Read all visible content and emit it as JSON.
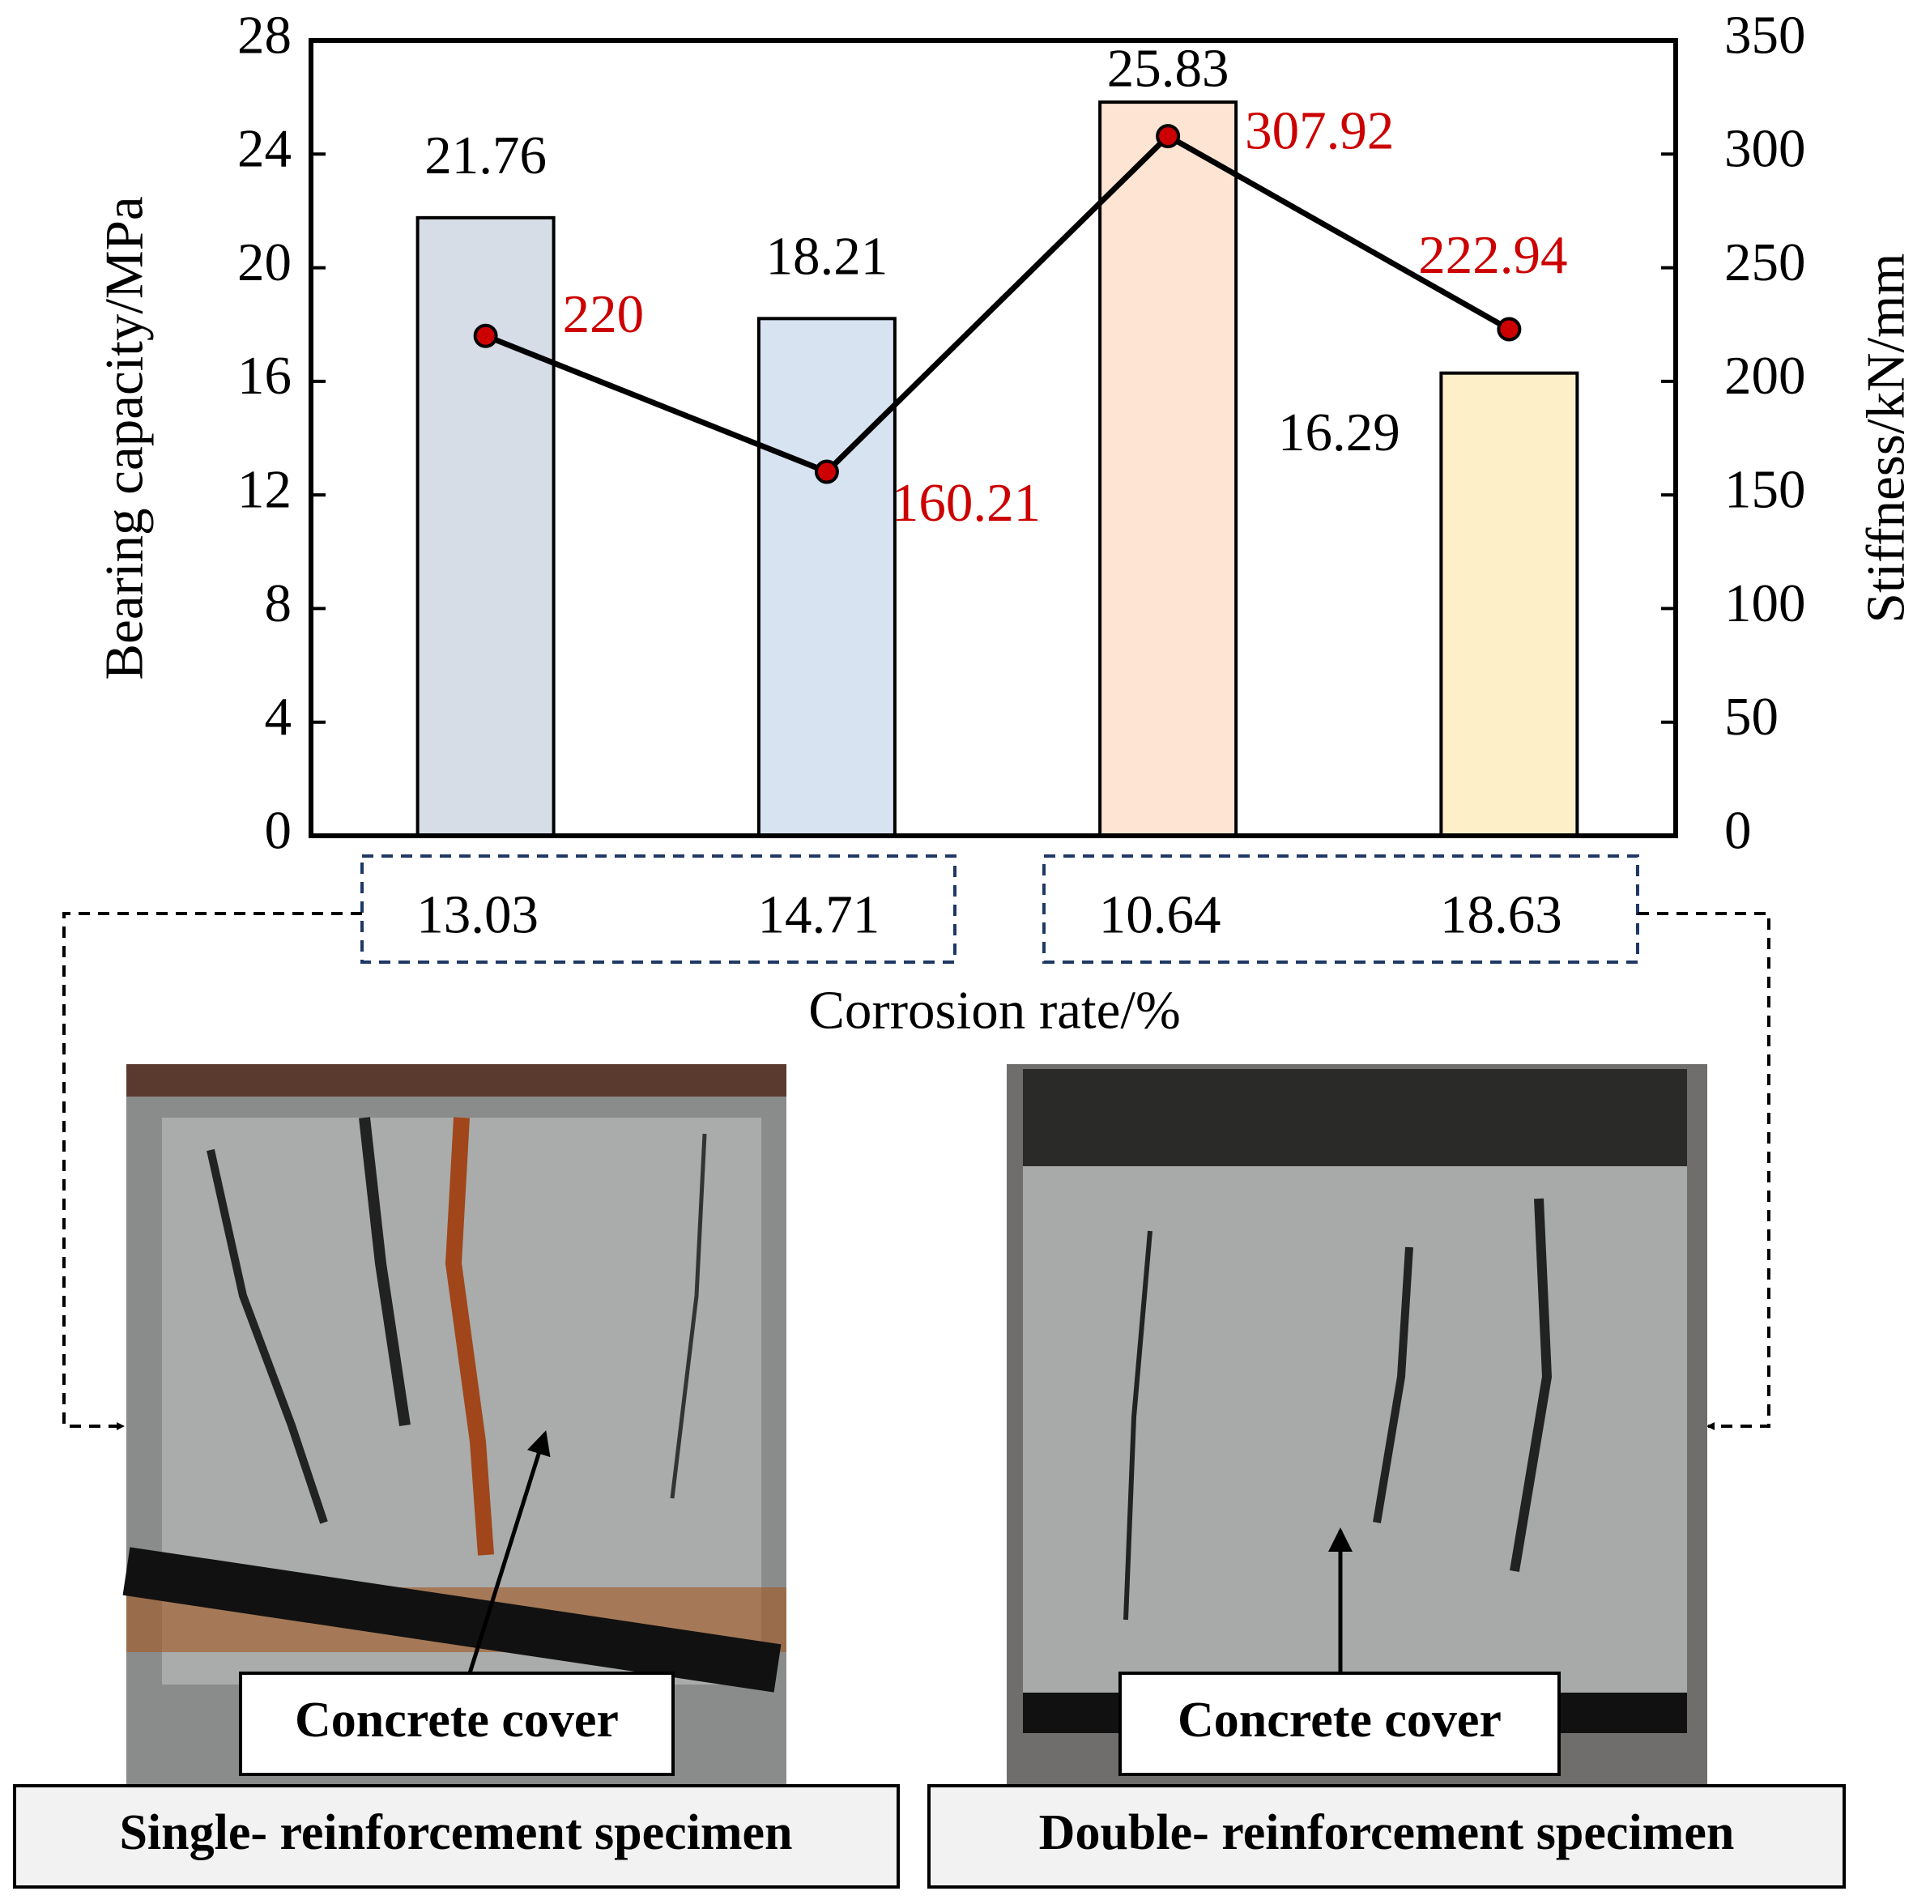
{
  "chart_data": {
    "type": "bar-line",
    "y_label": "Bearing capacity/MPa",
    "y2_label": "Stiffness/kN/mm",
    "x_label": "Corrosion rate/%",
    "categories": [
      "13.03",
      "14.71",
      "10.64",
      "18.63"
    ],
    "ylim": [
      0,
      28
    ],
    "yticks": [
      0,
      4,
      8,
      12,
      16,
      20,
      24,
      28
    ],
    "y2lim": [
      0,
      350
    ],
    "y2ticks": [
      0,
      50,
      100,
      150,
      200,
      250,
      300,
      350
    ],
    "series": [
      {
        "type": "bar",
        "colors": [
          "#d6dde6",
          "#d8e3f2",
          "#fde4d3",
          "#fdf0c9"
        ],
        "label_color": "#000000",
        "values": [
          21.76,
          18.21,
          25.83,
          16.29
        ]
      },
      {
        "type": "line",
        "axis": "y2",
        "color": "#000000",
        "marker_color": "#cc0000",
        "label_color": "#cc0000",
        "values": [
          220,
          160.21,
          307.92,
          222.94
        ]
      }
    ]
  },
  "panels": [
    {
      "label": "Concrete cover",
      "caption": "Single- reinforcement specimen"
    },
    {
      "label": "Concrete cover",
      "caption": "Double- reinforcement specimen"
    }
  ]
}
